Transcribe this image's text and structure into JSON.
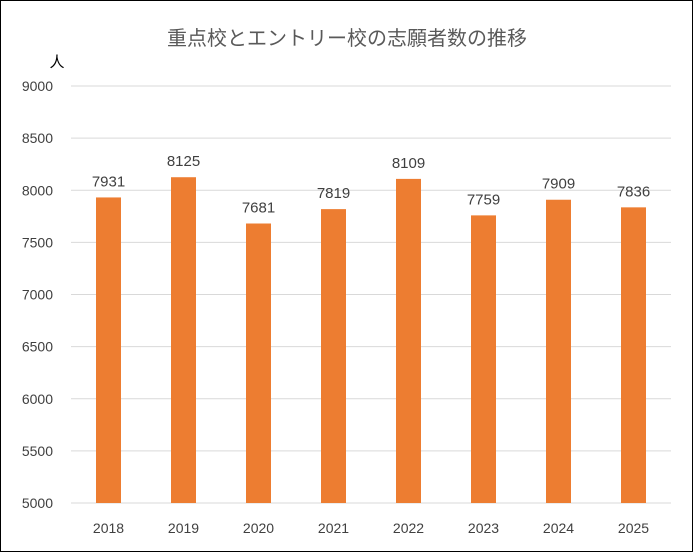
{
  "chart_data": {
    "type": "bar",
    "title": "重点校とエントリー校の志願者数の推移",
    "unit_label": "人",
    "xlabel": "",
    "ylabel": "",
    "categories": [
      "2018",
      "2019",
      "2020",
      "2021",
      "2022",
      "2023",
      "2024",
      "2025"
    ],
    "values": [
      7931,
      8125,
      7681,
      7819,
      8109,
      7759,
      7909,
      7836
    ],
    "ylim": [
      5000,
      9000
    ],
    "yticks": [
      5000,
      5500,
      6000,
      6500,
      7000,
      7500,
      8000,
      8500,
      9000
    ],
    "grid": true,
    "legend": "none",
    "bar_color": "#ED7D31",
    "grid_color": "#D9D9D9"
  }
}
